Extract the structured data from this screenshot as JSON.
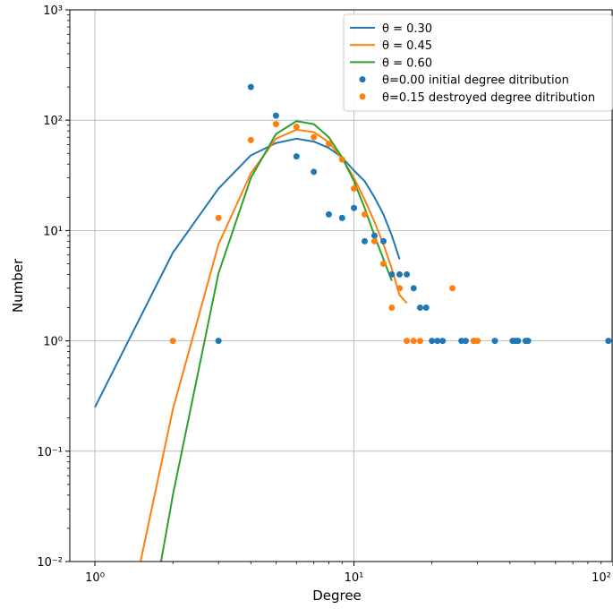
{
  "chart_data": {
    "type": "line",
    "xlabel": "Degree",
    "ylabel": "Number",
    "xscale": "log",
    "yscale": "log",
    "xlim": [
      0.8,
      100
    ],
    "ylim": [
      0.01,
      1000
    ],
    "grid": true,
    "legend_position": "top-right",
    "x_ticks": [
      {
        "value": 1,
        "label": "10⁰"
      },
      {
        "value": 10,
        "label": "10¹"
      },
      {
        "value": 100,
        "label": "10²"
      }
    ],
    "y_ticks": [
      {
        "value": 0.01,
        "label": "10⁻²"
      },
      {
        "value": 0.1,
        "label": "10⁻¹"
      },
      {
        "value": 1,
        "label": "10⁰"
      },
      {
        "value": 10,
        "label": "10¹"
      },
      {
        "value": 100,
        "label": "10²"
      },
      {
        "value": 1000,
        "label": "10³"
      }
    ],
    "series": [
      {
        "name": "θ = 0.30",
        "kind": "line",
        "color": "#1f77b4",
        "x": [
          1,
          2,
          3,
          4,
          5,
          6,
          7,
          8,
          9,
          10,
          11,
          12,
          13,
          14,
          15
        ],
        "y": [
          0.25,
          6.3,
          24,
          48,
          62,
          68,
          64,
          56,
          46,
          35,
          28,
          20,
          14,
          9,
          5.5
        ]
      },
      {
        "name": "θ = 0.45",
        "kind": "line",
        "color": "#ff7f0e",
        "x": [
          1.5,
          2,
          3,
          4,
          5,
          6,
          7,
          8,
          9,
          10,
          11,
          12,
          13,
          14,
          15,
          16
        ],
        "y": [
          0.01,
          0.24,
          7.5,
          33,
          68,
          82,
          78,
          63,
          45,
          30,
          19,
          12,
          7.5,
          4.5,
          2.6,
          2.2
        ]
      },
      {
        "name": "θ = 0.60",
        "kind": "line",
        "color": "#2ca02c",
        "x": [
          1.8,
          2,
          3,
          4,
          5,
          6,
          7,
          8,
          9,
          10,
          11,
          12,
          13,
          14
        ],
        "y": [
          0.01,
          0.04,
          4.1,
          30,
          75,
          98,
          92,
          70,
          46,
          28,
          16,
          9,
          5.5,
          3.5
        ]
      },
      {
        "name": "θ=0.00 initial degree ditribution",
        "kind": "scatter",
        "color": "#1f77b4",
        "x": [
          3,
          4,
          5,
          6,
          7,
          8,
          9,
          10,
          11,
          12,
          13,
          14,
          15,
          16,
          17,
          18,
          19,
          20,
          21,
          22,
          26,
          27,
          29,
          35,
          41,
          42,
          43,
          46,
          47,
          96
        ],
        "y": [
          1,
          200,
          110,
          47,
          34,
          14,
          13,
          16,
          8,
          9,
          8,
          4,
          4,
          4,
          3,
          2,
          2,
          1,
          1,
          1,
          1,
          1,
          1,
          1,
          1,
          1,
          1,
          1,
          1,
          1
        ]
      },
      {
        "name": "θ=0.15 destroyed degree ditribution",
        "kind": "scatter",
        "color": "#ff7f0e",
        "x": [
          2,
          3,
          4,
          5,
          6,
          7,
          8,
          9,
          10,
          11,
          12,
          13,
          14,
          15,
          16,
          17,
          18,
          24,
          29,
          30
        ],
        "y": [
          1,
          13,
          66,
          92,
          87,
          70,
          61,
          44,
          24,
          14,
          8,
          5,
          2,
          3,
          1,
          1,
          1,
          3,
          1,
          1
        ]
      }
    ]
  }
}
